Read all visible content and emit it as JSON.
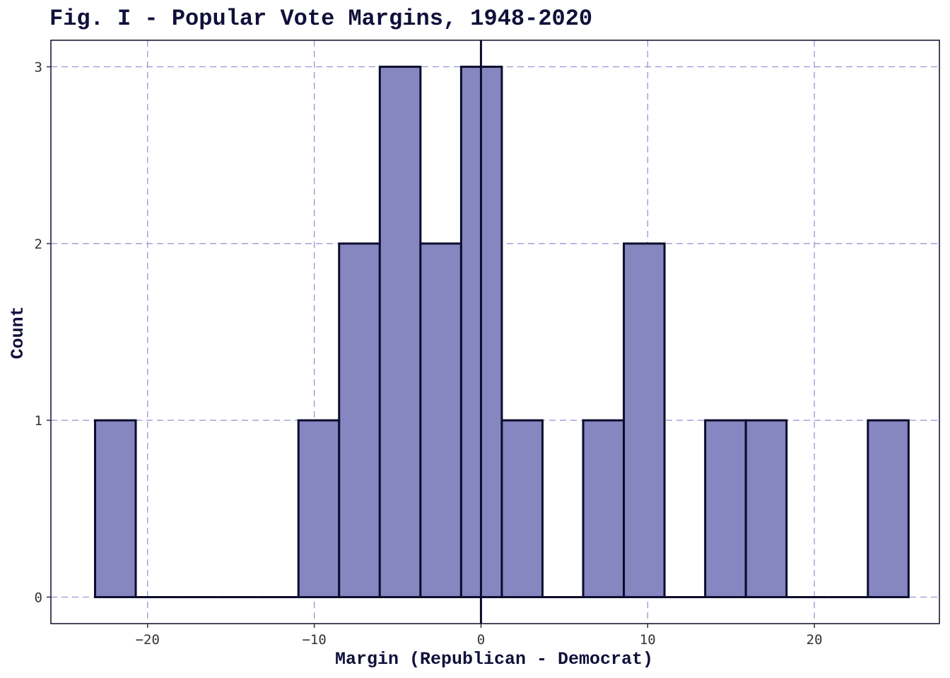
{
  "chart_data": {
    "type": "bar",
    "title": "Fig. I - Popular Vote Margins, 1948-2020",
    "xlabel": "Margin (Republican - Democrat)",
    "ylabel": "Count",
    "xlim": [
      -25.8,
      27.5
    ],
    "ylim": [
      -0.15,
      3.15
    ],
    "x_ticks": [
      -20,
      -10,
      0,
      10,
      20
    ],
    "x_tick_labels": [
      "-20",
      "-10",
      "0",
      "10",
      "20"
    ],
    "y_ticks": [
      0,
      1,
      2,
      3
    ],
    "y_tick_labels": [
      "0",
      "1",
      "2",
      "3"
    ],
    "bins": [
      {
        "x0": -23.15,
        "x1": -20.71,
        "count": 1
      },
      {
        "x0": -20.71,
        "x1": -18.27,
        "count": 0
      },
      {
        "x0": -18.27,
        "x1": -15.83,
        "count": 0
      },
      {
        "x0": -15.83,
        "x1": -13.39,
        "count": 0
      },
      {
        "x0": -13.39,
        "x1": -10.95,
        "count": 0
      },
      {
        "x0": -10.95,
        "x1": -8.51,
        "count": 1
      },
      {
        "x0": -8.51,
        "x1": -6.07,
        "count": 2
      },
      {
        "x0": -6.07,
        "x1": -3.63,
        "count": 3
      },
      {
        "x0": -3.63,
        "x1": -1.19,
        "count": 2
      },
      {
        "x0": -1.19,
        "x1": 1.25,
        "count": 3
      },
      {
        "x0": 1.25,
        "x1": 3.69,
        "count": 1
      },
      {
        "x0": 3.69,
        "x1": 6.13,
        "count": 0
      },
      {
        "x0": 6.13,
        "x1": 8.57,
        "count": 1
      },
      {
        "x0": 8.57,
        "x1": 11.01,
        "count": 2
      },
      {
        "x0": 11.01,
        "x1": 13.45,
        "count": 0
      },
      {
        "x0": 13.45,
        "x1": 15.89,
        "count": 1
      },
      {
        "x0": 15.89,
        "x1": 18.33,
        "count": 1
      },
      {
        "x0": 18.33,
        "x1": 20.77,
        "count": 0
      },
      {
        "x0": 20.77,
        "x1": 23.21,
        "count": 0
      },
      {
        "x0": 23.21,
        "x1": 25.65,
        "count": 1
      }
    ],
    "reference_line_x": 0,
    "grid": true,
    "colors": {
      "fill": "#8686c1",
      "outline": "#0c0c2c",
      "grid": "#8f8fd0",
      "text": "#10103a"
    }
  }
}
